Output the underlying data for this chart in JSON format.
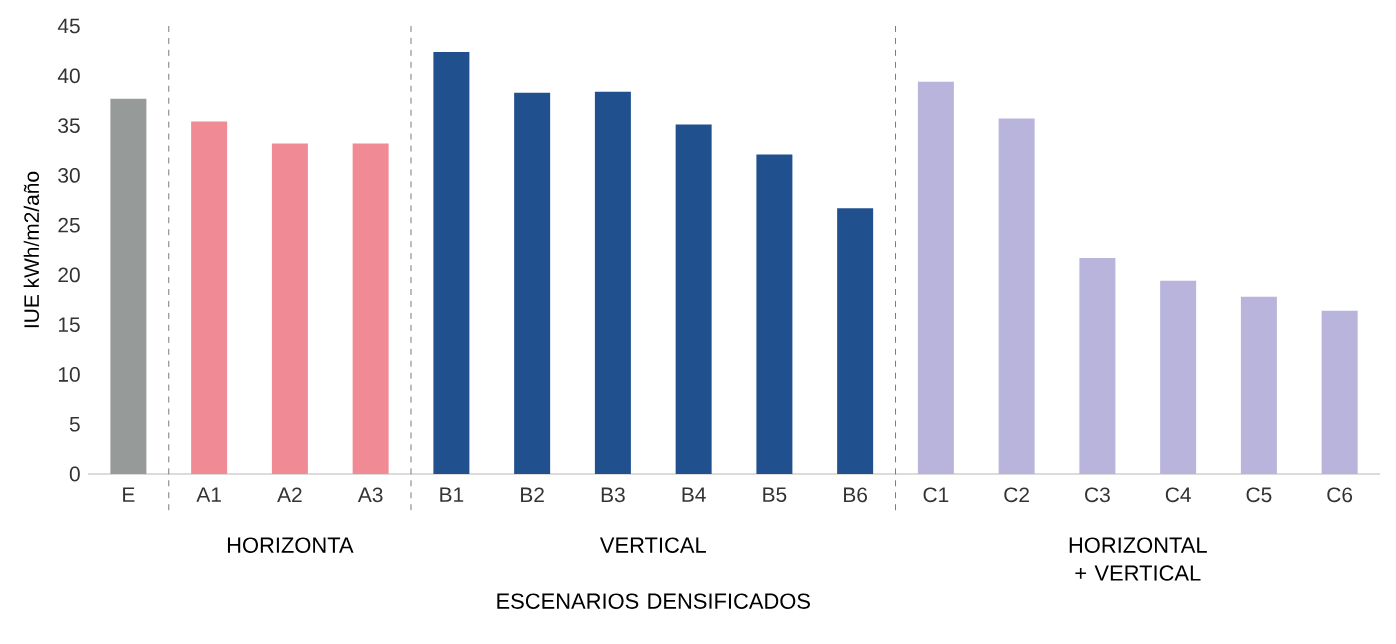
{
  "chart_data": {
    "type": "bar",
    "ylabel": "IUE  kWh/m2/año",
    "categories": [
      "E",
      "A1",
      "A2",
      "A3",
      "B1",
      "B2",
      "B3",
      "B4",
      "B5",
      "B6",
      "C1",
      "C2",
      "C3",
      "C4",
      "C5",
      "C6"
    ],
    "values": [
      37.7,
      35.4,
      33.2,
      33.2,
      42.4,
      38.3,
      38.4,
      35.1,
      32.1,
      26.7,
      39.4,
      35.7,
      21.7,
      19.4,
      17.8,
      16.4
    ],
    "colors": [
      "#969b9a",
      "#f08a94",
      "#f08a94",
      "#f08a94",
      "#21508f",
      "#21508f",
      "#21508f",
      "#21508f",
      "#21508f",
      "#21508f",
      "#b9b4dc",
      "#b9b4dc",
      "#b9b4dc",
      "#b9b4dc",
      "#b9b4dc",
      "#b9b4dc"
    ],
    "ylim": [
      0,
      45
    ],
    "yticks": [
      0,
      5,
      10,
      15,
      20,
      25,
      30,
      35,
      40,
      45
    ],
    "annotations": [
      "HORIZONTA",
      "VERTICAL",
      "HORIZONTAL + VERTICAL",
      "ESCENARIOS DENSIFICADOS"
    ]
  }
}
